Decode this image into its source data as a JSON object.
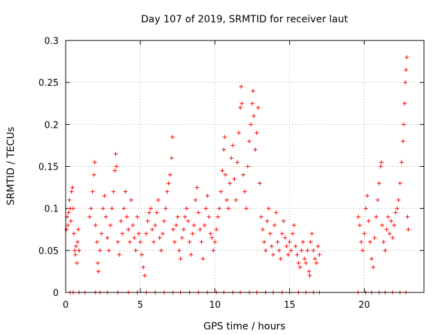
{
  "chart_data": {
    "type": "scatter",
    "title": "Day 107 of 2019, SRMTID for receiver laut",
    "xlabel": "GPS time / hours",
    "ylabel": "SRMTID / TECUs",
    "xlim": [
      0,
      24
    ],
    "ylim": [
      0,
      0.3
    ],
    "xticks": [
      0,
      5,
      10,
      15,
      20
    ],
    "xtick_labels": [
      "0",
      "5",
      "10",
      "15",
      "20"
    ],
    "yticks": [
      0,
      0.05,
      0.1,
      0.15,
      0.2,
      0.25,
      0.3
    ],
    "ytick_labels": [
      "0",
      "0.05",
      "0.1",
      "0.15",
      "0.2",
      "0.25",
      "0.3"
    ],
    "grid": true,
    "marker": "+",
    "color": "#ff0000",
    "series": [
      {
        "name": "SRMTID",
        "points": [
          [
            0.05,
            0.075
          ],
          [
            0.1,
            0.09
          ],
          [
            0.15,
            0.08
          ],
          [
            0.2,
            0.095
          ],
          [
            0.25,
            0.11
          ],
          [
            0.3,
            0.1
          ],
          [
            0.35,
            0.085
          ],
          [
            0.4,
            0.12
          ],
          [
            0.45,
            0.125
          ],
          [
            0.5,
            0.1
          ],
          [
            0.55,
            0.07
          ],
          [
            0.6,
            0.05
          ],
          [
            0.65,
            0.045
          ],
          [
            0.7,
            0.055
          ],
          [
            0.75,
            0.035
          ],
          [
            0.8,
            0.06
          ],
          [
            0.85,
            0.075
          ],
          [
            0.9,
            0.05
          ],
          [
            1.6,
            0.09
          ],
          [
            1.7,
            0.1
          ],
          [
            1.8,
            0.12
          ],
          [
            1.9,
            0.14
          ],
          [
            1.95,
            0.155
          ],
          [
            2.0,
            0.08
          ],
          [
            2.1,
            0.06
          ],
          [
            2.15,
            0.035
          ],
          [
            2.2,
            0.025
          ],
          [
            2.3,
            0.05
          ],
          [
            2.4,
            0.07
          ],
          [
            2.5,
            0.1
          ],
          [
            2.6,
            0.115
          ],
          [
            2.7,
            0.09
          ],
          [
            2.8,
            0.065
          ],
          [
            2.9,
            0.05
          ],
          [
            3.0,
            0.08
          ],
          [
            3.1,
            0.1
          ],
          [
            3.2,
            0.12
          ],
          [
            3.3,
            0.145
          ],
          [
            3.35,
            0.165
          ],
          [
            3.4,
            0.15
          ],
          [
            3.5,
            0.06
          ],
          [
            3.6,
            0.045
          ],
          [
            3.7,
            0.085
          ],
          [
            3.8,
            0.07
          ],
          [
            3.9,
            0.1
          ],
          [
            4.0,
            0.12
          ],
          [
            4.1,
            0.09
          ],
          [
            4.2,
            0.075
          ],
          [
            4.3,
            0.06
          ],
          [
            4.4,
            0.11
          ],
          [
            4.5,
            0.08
          ],
          [
            4.6,
            0.065
          ],
          [
            4.7,
            0.05
          ],
          [
            4.8,
            0.09
          ],
          [
            4.9,
            0.07
          ],
          [
            5.0,
            0.06
          ],
          [
            5.1,
            0.045
          ],
          [
            5.2,
            0.03
          ],
          [
            5.3,
            0.02
          ],
          [
            5.4,
            0.07
          ],
          [
            5.5,
            0.085
          ],
          [
            5.6,
            0.095
          ],
          [
            5.7,
            0.1
          ],
          [
            5.8,
            0.075
          ],
          [
            5.9,
            0.06
          ],
          [
            6.0,
            0.08
          ],
          [
            6.1,
            0.095
          ],
          [
            6.2,
            0.11
          ],
          [
            6.3,
            0.065
          ],
          [
            6.4,
            0.05
          ],
          [
            6.5,
            0.07
          ],
          [
            6.6,
            0.085
          ],
          [
            6.7,
            0.1
          ],
          [
            6.8,
            0.12
          ],
          [
            6.9,
            0.13
          ],
          [
            7.0,
            0.14
          ],
          [
            7.1,
            0.16
          ],
          [
            7.15,
            0.185
          ],
          [
            7.2,
            0.075
          ],
          [
            7.3,
            0.06
          ],
          [
            7.4,
            0.08
          ],
          [
            7.5,
            0.09
          ],
          [
            7.6,
            0.05
          ],
          [
            7.7,
            0.04
          ],
          [
            7.8,
            0.065
          ],
          [
            7.9,
            0.075
          ],
          [
            8.0,
            0.09
          ],
          [
            8.1,
            0.1
          ],
          [
            8.2,
            0.085
          ],
          [
            8.3,
            0.06
          ],
          [
            8.4,
            0.045
          ],
          [
            8.5,
            0.07
          ],
          [
            8.6,
            0.08
          ],
          [
            8.7,
            0.11
          ],
          [
            8.8,
            0.125
          ],
          [
            8.9,
            0.095
          ],
          [
            9.0,
            0.075
          ],
          [
            9.1,
            0.06
          ],
          [
            9.2,
            0.04
          ],
          [
            9.3,
            0.08
          ],
          [
            9.4,
            0.1
          ],
          [
            9.5,
            0.115
          ],
          [
            9.6,
            0.09
          ],
          [
            9.7,
            0.07
          ],
          [
            9.8,
            0.065
          ],
          [
            9.9,
            0.05
          ],
          [
            10.0,
            0.06
          ],
          [
            10.1,
            0.075
          ],
          [
            10.2,
            0.09
          ],
          [
            10.3,
            0.1
          ],
          [
            10.4,
            0.12
          ],
          [
            10.5,
            0.145
          ],
          [
            10.6,
            0.17
          ],
          [
            10.65,
            0.185
          ],
          [
            10.7,
            0.14
          ],
          [
            10.8,
            0.11
          ],
          [
            10.9,
            0.1
          ],
          [
            11.0,
            0.13
          ],
          [
            11.1,
            0.16
          ],
          [
            11.2,
            0.175
          ],
          [
            11.3,
            0.135
          ],
          [
            11.4,
            0.11
          ],
          [
            11.5,
            0.155
          ],
          [
            11.6,
            0.19
          ],
          [
            11.7,
            0.22
          ],
          [
            11.75,
            0.245
          ],
          [
            11.8,
            0.225
          ],
          [
            11.9,
            0.14
          ],
          [
            12.0,
            0.12
          ],
          [
            12.1,
            0.1
          ],
          [
            12.2,
            0.15
          ],
          [
            12.3,
            0.18
          ],
          [
            12.4,
            0.2
          ],
          [
            12.5,
            0.225
          ],
          [
            12.55,
            0.24
          ],
          [
            12.6,
            0.21
          ],
          [
            12.7,
            0.17
          ],
          [
            12.8,
            0.19
          ],
          [
            12.9,
            0.22
          ],
          [
            13.0,
            0.13
          ],
          [
            13.1,
            0.09
          ],
          [
            13.2,
            0.075
          ],
          [
            13.3,
            0.06
          ],
          [
            13.4,
            0.05
          ],
          [
            13.5,
            0.085
          ],
          [
            13.6,
            0.1
          ],
          [
            13.7,
            0.07
          ],
          [
            13.8,
            0.055
          ],
          [
            13.9,
            0.045
          ],
          [
            14.0,
            0.08
          ],
          [
            14.1,
            0.095
          ],
          [
            14.2,
            0.06
          ],
          [
            14.3,
            0.05
          ],
          [
            14.4,
            0.04
          ],
          [
            14.5,
            0.07
          ],
          [
            14.6,
            0.085
          ],
          [
            14.7,
            0.065
          ],
          [
            14.8,
            0.055
          ],
          [
            14.9,
            0.045
          ],
          [
            15.0,
            0.06
          ],
          [
            15.1,
            0.05
          ],
          [
            15.2,
            0.07
          ],
          [
            15.3,
            0.08
          ],
          [
            15.4,
            0.055
          ],
          [
            15.5,
            0.045
          ],
          [
            15.6,
            0.035
          ],
          [
            15.7,
            0.03
          ],
          [
            15.8,
            0.05
          ],
          [
            15.9,
            0.06
          ],
          [
            16.0,
            0.04
          ],
          [
            16.1,
            0.035
          ],
          [
            16.2,
            0.05
          ],
          [
            16.3,
            0.025
          ],
          [
            16.35,
            0.02
          ],
          [
            16.4,
            0.06
          ],
          [
            16.5,
            0.07
          ],
          [
            16.6,
            0.05
          ],
          [
            16.7,
            0.04
          ],
          [
            16.8,
            0.035
          ],
          [
            16.9,
            0.055
          ],
          [
            17.0,
            0.045
          ],
          [
            19.6,
            0.09
          ],
          [
            19.7,
            0.08
          ],
          [
            19.8,
            0.06
          ],
          [
            19.9,
            0.05
          ],
          [
            20.0,
            0.07
          ],
          [
            20.1,
            0.1
          ],
          [
            20.2,
            0.115
          ],
          [
            20.3,
            0.085
          ],
          [
            20.4,
            0.06
          ],
          [
            20.5,
            0.04
          ],
          [
            20.6,
            0.03
          ],
          [
            20.7,
            0.065
          ],
          [
            20.8,
            0.09
          ],
          [
            20.9,
            0.11
          ],
          [
            21.0,
            0.13
          ],
          [
            21.1,
            0.15
          ],
          [
            21.15,
            0.155
          ],
          [
            21.2,
            0.08
          ],
          [
            21.3,
            0.06
          ],
          [
            21.4,
            0.05
          ],
          [
            21.5,
            0.075
          ],
          [
            21.6,
            0.09
          ],
          [
            21.7,
            0.07
          ],
          [
            21.8,
            0.085
          ],
          [
            21.9,
            0.065
          ],
          [
            22.0,
            0.08
          ],
          [
            22.1,
            0.095
          ],
          [
            22.2,
            0.1
          ],
          [
            22.3,
            0.11
          ],
          [
            22.4,
            0.13
          ],
          [
            22.5,
            0.155
          ],
          [
            22.6,
            0.18
          ],
          [
            22.65,
            0.2
          ],
          [
            22.7,
            0.225
          ],
          [
            22.75,
            0.25
          ],
          [
            22.8,
            0.265
          ],
          [
            22.85,
            0.28
          ],
          [
            22.9,
            0.09
          ],
          [
            22.95,
            0.075
          ]
        ],
        "zero_points": [
          0.3,
          0.5,
          0.9,
          1.3,
          2.0,
          2.3,
          2.8,
          3.5,
          4.2,
          4.8,
          5.4,
          6.0,
          6.6,
          7.2,
          7.7,
          8.3,
          8.9,
          9.5,
          10.1,
          10.6,
          11.2,
          11.7,
          12.3,
          12.8,
          13.4,
          13.9,
          14.5,
          15.0,
          15.6,
          16.1,
          16.6,
          17.0,
          19.6,
          20.1,
          20.5,
          21.0,
          21.4,
          21.9,
          22.4,
          22.8
        ]
      }
    ]
  }
}
